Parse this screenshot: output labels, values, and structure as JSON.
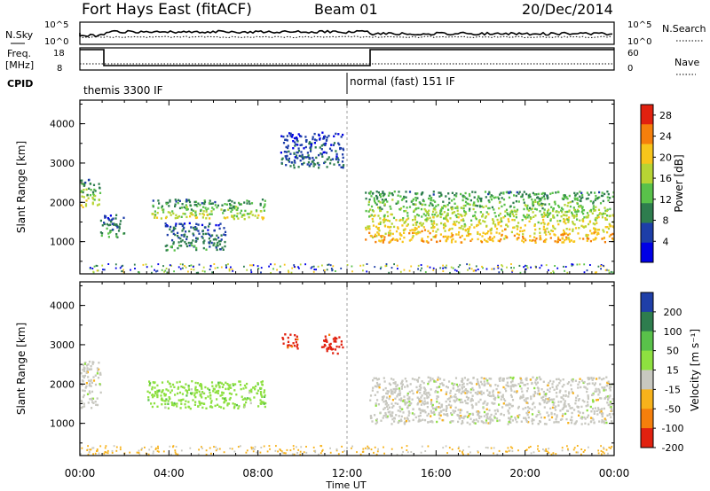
{
  "header": {
    "radar_title": "Fort Hays East (fitACF)",
    "beam": "Beam 01",
    "date": "20/Dec/2014"
  },
  "top_strips": {
    "nsky_label": "N.Sky",
    "nsky_ticks": [
      "10^5",
      "10^0"
    ],
    "nsearch_label": "N.Search",
    "nsearch_ticks": [
      "10^5",
      "10^0"
    ],
    "freq_label": "Freq.",
    "freq_unit": "[MHz]",
    "freq_ticks": [
      "18",
      "8"
    ],
    "nave_label": "Nave",
    "nave_ticks": [
      "60",
      "0"
    ],
    "cpid_label": "CPID",
    "cpid_segments": [
      {
        "start_hour": 0,
        "label": "themis 3300 IF"
      },
      {
        "start_hour": 12,
        "label": "normal (fast) 151 IF"
      }
    ]
  },
  "chart_data": [
    {
      "type": "heatmap",
      "name": "power-panel",
      "xlabel": "Time UT",
      "ylabel": "Slant Range [km]",
      "xlim": [
        0,
        24
      ],
      "ylim": [
        180,
        4600
      ],
      "yticks": [
        "1000",
        "2000",
        "3000",
        "4000"
      ],
      "colorbar_label": "Power [dB]",
      "colorbar_ticks": [
        "4",
        "8",
        "12",
        "16",
        "20",
        "24",
        "28"
      ],
      "colorbar_range": [
        0,
        30
      ],
      "colors": [
        "#0000e6",
        "#1d3ea8",
        "#2e7d4e",
        "#59c14a",
        "#b7d434",
        "#f7c51b",
        "#f57f0c",
        "#e1210f"
      ],
      "echo_regions": [
        {
          "t0": 0.0,
          "t1": 0.9,
          "r0": 1900,
          "r1": 2600,
          "level": 16
        },
        {
          "t0": 0.9,
          "t1": 2.0,
          "r0": 1100,
          "r1": 1700,
          "level": 10
        },
        {
          "t0": 3.2,
          "t1": 8.3,
          "r0": 1600,
          "r1": 2100,
          "level": 16
        },
        {
          "t0": 3.8,
          "t1": 6.5,
          "r0": 800,
          "r1": 1500,
          "level": 8
        },
        {
          "t0": 9.0,
          "t1": 11.8,
          "r0": 2900,
          "r1": 3800,
          "level": 6
        },
        {
          "t0": 12.8,
          "t1": 24.0,
          "r0": 1000,
          "r1": 2300,
          "level": 20
        }
      ]
    },
    {
      "type": "heatmap",
      "name": "velocity-panel",
      "xlabel": "Time UT",
      "ylabel": "Slant Range [km]",
      "xlim": [
        0,
        24
      ],
      "ylim": [
        180,
        4600
      ],
      "yticks": [
        "1000",
        "2000",
        "3000",
        "4000"
      ],
      "colorbar_label": "Velocity [m s⁻¹]",
      "colorbar_ticks": [
        "200",
        "100",
        "50",
        "15",
        "-15",
        "-50",
        "-100",
        "-200"
      ],
      "colors": [
        "#1f3fa8",
        "#2e7d4e",
        "#59c14a",
        "#8ee040",
        "#c8c8c0",
        "#f7b21b",
        "#f57f0c",
        "#e1210f"
      ],
      "echo_regions": [
        {
          "t0": 0.0,
          "t1": 0.9,
          "r0": 1400,
          "r1": 2600,
          "class": "-15..15"
        },
        {
          "t0": 3.0,
          "t1": 8.3,
          "r0": 1400,
          "r1": 2100,
          "class": "15..50"
        },
        {
          "t0": 9.0,
          "t1": 9.8,
          "r0": 2900,
          "r1": 3300,
          "class": "<-200"
        },
        {
          "t0": 10.8,
          "t1": 11.8,
          "r0": 2800,
          "r1": 3300,
          "class": "<-200"
        },
        {
          "t0": 13.0,
          "t1": 24.0,
          "r0": 1000,
          "r1": 2200,
          "class": "-15..15"
        }
      ]
    }
  ],
  "time_axis": {
    "ticks": [
      "00:00",
      "04:00",
      "08:00",
      "12:00",
      "16:00",
      "20:00",
      "00:00"
    ],
    "label": "Time UT"
  }
}
